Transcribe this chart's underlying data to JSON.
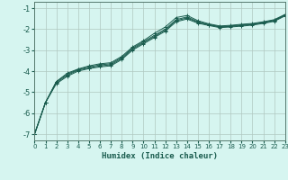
{
  "xlabel": "Humidex (Indice chaleur)",
  "background_color": "#d6f5f0",
  "line_color": "#1a5c4e",
  "grid_color": "#b0c8c0",
  "xlim": [
    0,
    23
  ],
  "ylim": [
    -7.3,
    -0.7
  ],
  "yticks": [
    -7,
    -6,
    -5,
    -4,
    -3,
    -2,
    -1
  ],
  "xticks": [
    0,
    1,
    2,
    3,
    4,
    5,
    6,
    7,
    8,
    9,
    10,
    11,
    12,
    13,
    14,
    15,
    16,
    17,
    18,
    19,
    20,
    21,
    22,
    23
  ],
  "lines": [
    {
      "x": [
        0,
        1,
        2,
        3,
        4,
        5,
        6,
        7,
        8,
        9,
        10,
        11,
        12,
        13,
        14,
        15,
        16,
        17,
        18,
        19,
        20,
        21,
        22,
        23
      ],
      "y": [
        -7.0,
        -5.5,
        -4.5,
        -4.1,
        -3.9,
        -3.75,
        -3.65,
        -3.6,
        -3.3,
        -2.85,
        -2.55,
        -2.2,
        -1.9,
        -1.45,
        -1.35,
        -1.6,
        -1.75,
        -1.85,
        -1.82,
        -1.77,
        -1.73,
        -1.65,
        -1.55,
        -1.3
      ]
    },
    {
      "x": [
        0,
        1,
        2,
        3,
        4,
        5,
        6,
        7,
        8,
        9,
        10,
        11,
        12,
        13,
        14,
        15,
        16,
        17,
        18,
        19,
        20,
        21,
        22,
        23
      ],
      "y": [
        -7.0,
        -5.5,
        -4.5,
        -4.15,
        -3.92,
        -3.8,
        -3.7,
        -3.65,
        -3.35,
        -2.9,
        -2.6,
        -2.3,
        -2.0,
        -1.55,
        -1.42,
        -1.65,
        -1.78,
        -1.88,
        -1.85,
        -1.8,
        -1.76,
        -1.68,
        -1.58,
        -1.32
      ]
    },
    {
      "x": [
        0,
        1,
        2,
        3,
        4,
        5,
        6,
        7,
        8,
        9,
        10,
        11,
        12,
        13,
        14,
        15,
        16,
        17,
        18,
        19,
        20,
        21,
        22,
        23
      ],
      "y": [
        -7.0,
        -5.5,
        -4.55,
        -4.2,
        -3.95,
        -3.85,
        -3.75,
        -3.7,
        -3.4,
        -2.95,
        -2.65,
        -2.35,
        -2.05,
        -1.6,
        -1.47,
        -1.68,
        -1.8,
        -1.9,
        -1.87,
        -1.83,
        -1.78,
        -1.7,
        -1.6,
        -1.34
      ]
    },
    {
      "x": [
        0,
        1,
        2,
        3,
        4,
        5,
        6,
        7,
        8,
        9,
        10,
        11,
        12,
        13,
        14,
        15,
        16,
        17,
        18,
        19,
        20,
        21,
        22,
        23
      ],
      "y": [
        -7.0,
        -5.5,
        -4.6,
        -4.25,
        -4.0,
        -3.88,
        -3.8,
        -3.75,
        -3.45,
        -3.0,
        -2.7,
        -2.4,
        -2.1,
        -1.65,
        -1.52,
        -1.72,
        -1.83,
        -1.93,
        -1.9,
        -1.86,
        -1.81,
        -1.73,
        -1.63,
        -1.37
      ]
    }
  ]
}
